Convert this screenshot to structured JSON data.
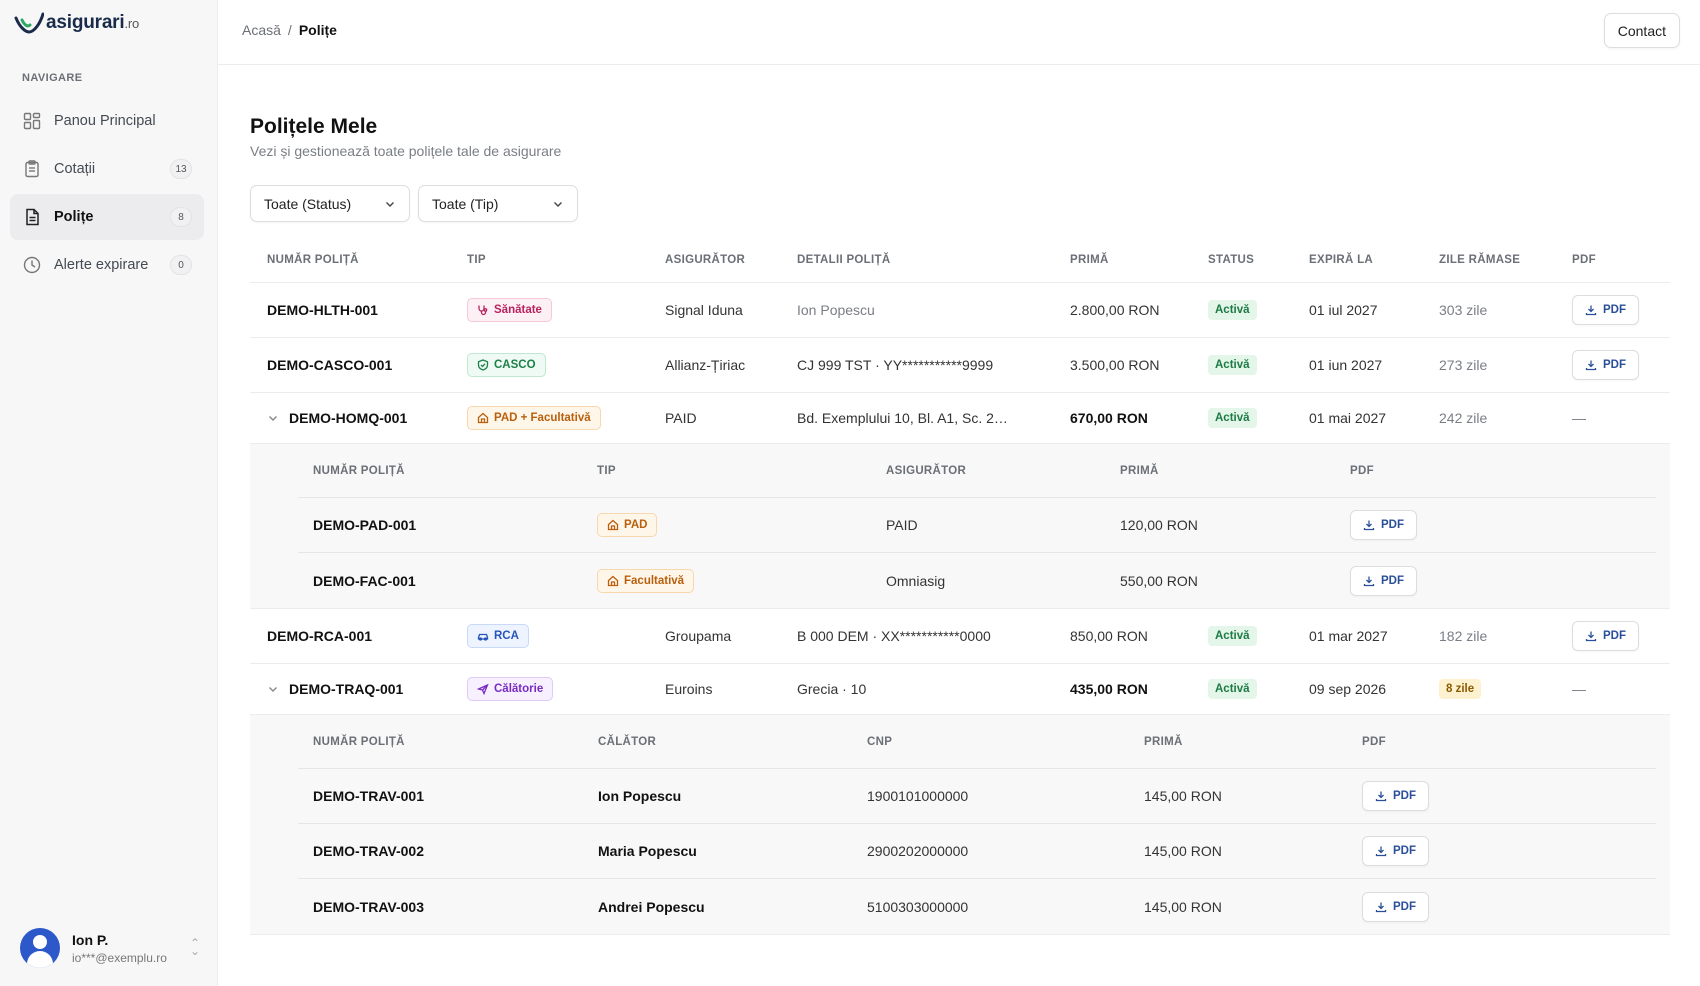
{
  "brand": {
    "name": "asigurari",
    "tld": ".ro"
  },
  "sidebar": {
    "section_label": "NAVIGARE",
    "items": [
      {
        "label": "Panou Principal",
        "icon": "grid-icon",
        "count": ""
      },
      {
        "label": "Cotații",
        "icon": "clipboard-icon",
        "count": "13"
      },
      {
        "label": "Polițe",
        "icon": "document-icon",
        "count": "8"
      },
      {
        "label": "Alerte expirare",
        "icon": "clock-icon",
        "count": "0"
      }
    ],
    "active_index": 2
  },
  "user": {
    "name": "Ion P.",
    "email": "io***@exemplu.ro"
  },
  "breadcrumb": {
    "home": "Acasă",
    "separator": "/",
    "current": "Polițe"
  },
  "header": {
    "contact_label": "Contact"
  },
  "page": {
    "title": "Polițele Mele",
    "subtitle": "Vezi și gestionează toate polițele tale de asigurare"
  },
  "filters": {
    "status": "Toate (Status)",
    "type": "Toate (Tip)"
  },
  "table": {
    "headers": [
      "NUMĂR POLIȚĂ",
      "TIP",
      "ASIGURĂTOR",
      "DETALII POLIȚĂ",
      "PRIMĂ",
      "STATUS",
      "EXPIRĂ LA",
      "ZILE RĂMASE",
      "PDF"
    ],
    "rows": [
      {
        "number": "DEMO-HLTH-001",
        "type": "Sănătate",
        "insurer": "Signal Iduna",
        "details": "Ion Popescu",
        "premium": "2.800,00 RON",
        "status": "Activă",
        "expires": "01 iul 2027",
        "days": "303 zile",
        "pdf": "PDF"
      },
      {
        "number": "DEMO-CASCO-001",
        "type": "CASCO",
        "insurer": "Allianz-Țiriac",
        "details": "CJ 999 TST · YY***********9999",
        "premium": "3.500,00 RON",
        "status": "Activă",
        "expires": "01 iun 2027",
        "days": "273 zile",
        "pdf": "PDF"
      },
      {
        "number": "DEMO-HOMQ-001",
        "type": "PAD + Facultativă",
        "insurer": "PAID",
        "details": "Bd. Exemplului 10, Bl. A1, Sc. 2…",
        "premium": "670,00 RON",
        "status": "Activă",
        "expires": "01 mai 2027",
        "days": "242 zile",
        "pdf": "—"
      },
      {
        "number": "DEMO-RCA-001",
        "type": "RCA",
        "insurer": "Groupama",
        "details": "B 000 DEM · XX***********0000",
        "premium": "850,00 RON",
        "status": "Activă",
        "expires": "01 mar 2027",
        "days": "182 zile",
        "pdf": "PDF"
      },
      {
        "number": "DEMO-TRAQ-001",
        "type": "Călătorie",
        "insurer": "Euroins",
        "details": "Grecia · 10",
        "premium": "435,00 RON",
        "status": "Activă",
        "expires": "09 sep 2026",
        "days": "8 zile",
        "pdf": "—"
      }
    ]
  },
  "home_sub": {
    "headers": [
      "NUMĂR POLIȚĂ",
      "TIP",
      "ASIGURĂTOR",
      "PRIMĂ",
      "PDF"
    ],
    "rows": [
      {
        "number": "DEMO-PAD-001",
        "type": "PAD",
        "insurer": "PAID",
        "premium": "120,00 RON",
        "pdf": "PDF"
      },
      {
        "number": "DEMO-FAC-001",
        "type": "Facultativă",
        "insurer": "Omniasig",
        "premium": "550,00 RON",
        "pdf": "PDF"
      }
    ]
  },
  "travel_sub": {
    "headers": [
      "NUMĂR POLIȚĂ",
      "CĂLĂTOR",
      "CNP",
      "PRIMĂ",
      "PDF"
    ],
    "rows": [
      {
        "number": "DEMO-TRAV-001",
        "traveler": "Ion Popescu",
        "cnp": "1900101000000",
        "premium": "145,00 RON",
        "pdf": "PDF"
      },
      {
        "number": "DEMO-TRAV-002",
        "traveler": "Maria Popescu",
        "cnp": "2900202000000",
        "premium": "145,00 RON",
        "pdf": "PDF"
      },
      {
        "number": "DEMO-TRAV-003",
        "traveler": "Andrei Popescu",
        "cnp": "5100303000000",
        "premium": "145,00 RON",
        "pdf": "PDF"
      }
    ]
  },
  "colors": {
    "accent": "#2a4f9a",
    "status_active": "#1d7a44",
    "warning": "#8a5b00",
    "avatar": "#2c58c9"
  }
}
